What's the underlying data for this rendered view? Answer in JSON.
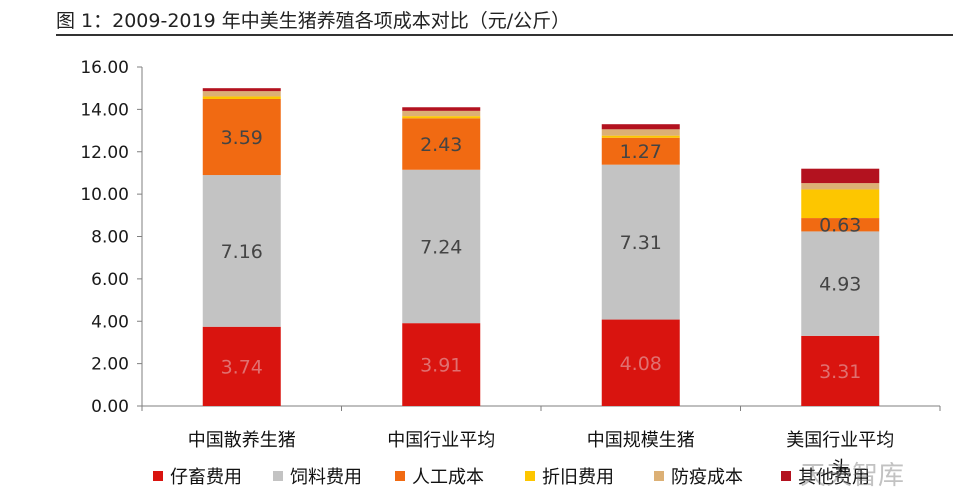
{
  "figure_title": "图 1：2009-2019 年中美生猪养殖各项成本对比（元/公斤）",
  "watermark": "天天智库",
  "colors": {
    "仔畜费用": "#d9140f",
    "饲料费用": "#c3c3c3",
    "人工成本": "#f16a12",
    "折旧费用": "#fdc600",
    "防疫成本": "#dcb075",
    "其他费用": "#b3121f"
  },
  "chart_data": {
    "type": "bar",
    "stacked": true,
    "categories": [
      "中国散养生猪",
      "中国行业平均",
      "中国规模生猪",
      "美国行业平均头"
    ],
    "category_lines": [
      [
        "中国散养生猪"
      ],
      [
        "中国行业平均"
      ],
      [
        "中国规模生猪"
      ],
      [
        "美国行业平均",
        "头"
      ]
    ],
    "series": [
      {
        "name": "仔畜费用",
        "values": [
          3.74,
          3.91,
          4.08,
          3.31
        ]
      },
      {
        "name": "饲料费用",
        "values": [
          7.16,
          7.24,
          7.31,
          4.93
        ]
      },
      {
        "name": "人工成本",
        "values": [
          3.59,
          2.43,
          1.27,
          0.63
        ]
      },
      {
        "name": "折旧费用",
        "values": [
          0.12,
          0.1,
          0.1,
          1.35
        ]
      },
      {
        "name": "防疫成本",
        "values": [
          0.25,
          0.25,
          0.3,
          0.3
        ]
      },
      {
        "name": "其他费用",
        "values": [
          0.14,
          0.17,
          0.24,
          0.68
        ]
      }
    ],
    "data_labels": [
      [
        "3.74",
        "3.91",
        "4.08",
        "3.31"
      ],
      [
        "7.16",
        "7.24",
        "7.31",
        "4.93"
      ],
      [
        "3.59",
        "2.43",
        "1.27",
        "0.63"
      ]
    ],
    "legend": [
      "仔畜费用",
      "饲料费用",
      "人工成本",
      "折旧费用",
      "防疫成本",
      "其他费用"
    ],
    "legend_placement": "bottom",
    "y_ticks": [
      "0.00",
      "2.00",
      "4.00",
      "6.00",
      "8.00",
      "10.00",
      "12.00",
      "14.00",
      "16.00"
    ],
    "ylim": [
      0,
      16
    ],
    "grid": false
  }
}
